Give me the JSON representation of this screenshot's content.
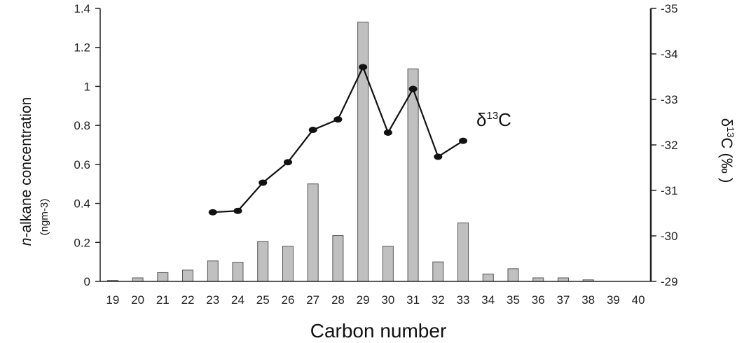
{
  "chart_data": {
    "type": "bar",
    "xlabel": "Carbon number",
    "ylabel_left": {
      "italic": "n",
      "rest": "-alkane concentration"
    },
    "ylabel_left_unit": "(ngm-3)",
    "ylabel_right": {
      "delta": "δ",
      "sup": "13",
      "rest": "C (‰ )"
    },
    "series_label": {
      "delta": "δ",
      "sup": "13",
      "rest": "C"
    },
    "categories": [
      "19",
      "20",
      "21",
      "22",
      "23",
      "24",
      "25",
      "26",
      "27",
      "28",
      "29",
      "30",
      "31",
      "32",
      "33",
      "34",
      "35",
      "36",
      "37",
      "38",
      "39",
      "40"
    ],
    "ylim_left": [
      0,
      1.4
    ],
    "yticks_left": [
      "0",
      "0.2",
      "0.4",
      "0.6",
      "0.8",
      "1",
      "1.2",
      "1.4"
    ],
    "ylim_right": [
      -29,
      -35
    ],
    "yticks_right": [
      "-29",
      "-30",
      "-31",
      "-32",
      "-33",
      "-34",
      "-35"
    ],
    "series": [
      {
        "kind": "bar",
        "axis": "left",
        "color": "#c0c0c0",
        "values": [
          0.005,
          0.018,
          0.045,
          0.058,
          0.105,
          0.098,
          0.205,
          0.18,
          0.5,
          0.235,
          1.33,
          0.18,
          1.09,
          0.1,
          0.3,
          0.038,
          0.065,
          0.018,
          0.018,
          0.008,
          0.0,
          0.0
        ]
      },
      {
        "kind": "line",
        "axis": "right",
        "color": "#111111",
        "x": [
          "23",
          "24",
          "25",
          "26",
          "27",
          "28",
          "29",
          "30",
          "31",
          "32",
          "33"
        ],
        "values": [
          -30.52,
          -30.55,
          -31.17,
          -31.62,
          -32.33,
          -32.56,
          -33.71,
          -32.27,
          -33.23,
          -31.74,
          -32.09
        ]
      }
    ],
    "grid": false,
    "legend": "none"
  }
}
